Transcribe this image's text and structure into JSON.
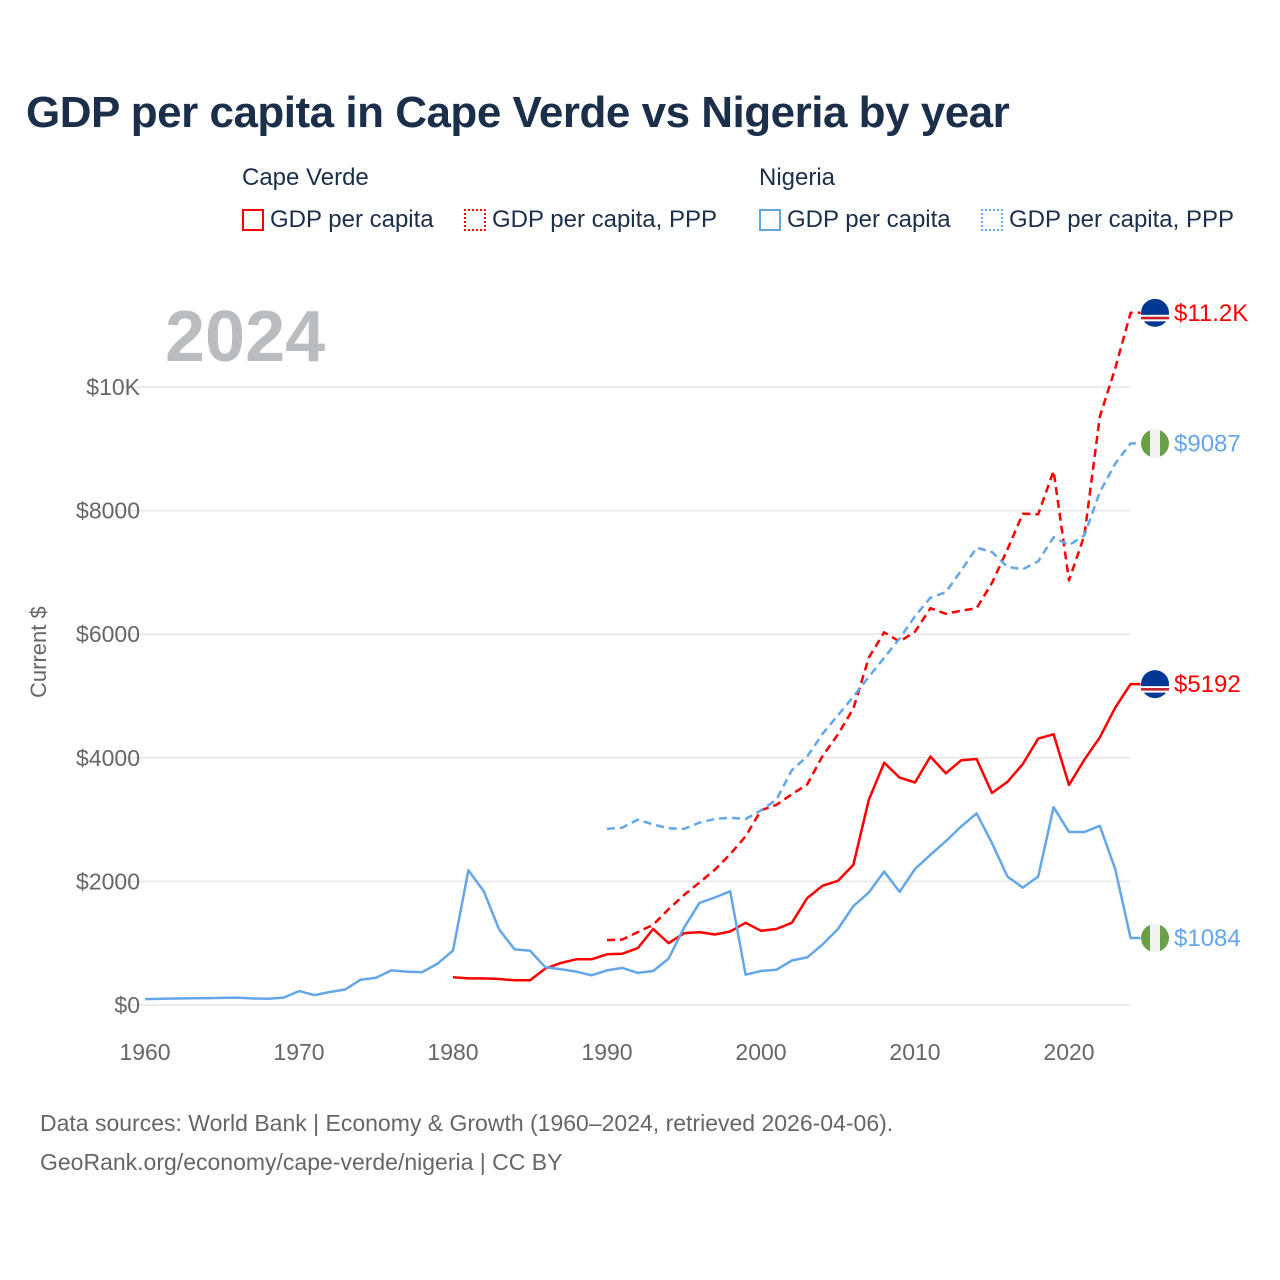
{
  "title": "GDP per capita in Cape Verde vs Nigeria by year",
  "legend": {
    "groups": [
      {
        "name": "Cape Verde",
        "color": "#ff0000",
        "items": [
          "GDP per capita",
          "GDP per capita, PPP"
        ]
      },
      {
        "name": "Nigeria",
        "color": "#63a7e8",
        "items": [
          "GDP per capita",
          "GDP per capita, PPP"
        ]
      }
    ]
  },
  "current_year": "2024",
  "footer": {
    "line1": "Data sources: World Bank | Economy & Growth (1960–2024, retrieved 2026-04-06).",
    "line2": "GeoRank.org/economy/cape-verde/nigeria | CC BY"
  },
  "chart_data": {
    "type": "line",
    "title": "GDP per capita in Cape Verde vs Nigeria by year",
    "xlabel": "",
    "ylabel": "Current $",
    "xlim": [
      1960,
      2024
    ],
    "ylim": [
      0,
      11200
    ],
    "grid": true,
    "legend_position": "top",
    "x_ticks": [
      1960,
      1970,
      1980,
      1990,
      2000,
      2010,
      2020
    ],
    "x_tick_labels": [
      "1960",
      "1970",
      "1980",
      "1990",
      "2000",
      "2010",
      "2020"
    ],
    "y_ticks": [
      0,
      2000,
      4000,
      6000,
      8000,
      10000
    ],
    "y_tick_labels": [
      "$0",
      "$2000",
      "$4000",
      "$6000",
      "$8000",
      "$10K"
    ],
    "series": [
      {
        "name": "Cape Verde GDP per capita",
        "country": "Cape Verde",
        "color": "#ff0000",
        "dashed": false,
        "start": 1980,
        "end_label": "$5192",
        "values": [
          450,
          430,
          430,
          420,
          400,
          400,
          590,
          680,
          740,
          740,
          820,
          830,
          920,
          1230,
          1000,
          1160,
          1180,
          1140,
          1190,
          1330,
          1200,
          1230,
          1330,
          1730,
          1930,
          2010,
          2270,
          3320,
          3920,
          3680,
          3600,
          4020,
          3750,
          3960,
          3980,
          3430,
          3610,
          3900,
          4310,
          4380,
          3560,
          3970,
          4330,
          4810,
          5192
        ]
      },
      {
        "name": "Cape Verde GDP per capita, PPP",
        "country": "Cape Verde",
        "color": "#ff0000",
        "dashed": true,
        "start": 1990,
        "end_label": "$11.2K",
        "values": [
          1050,
          1060,
          1180,
          1300,
          1550,
          1780,
          1980,
          2190,
          2440,
          2730,
          3150,
          3240,
          3410,
          3570,
          4030,
          4380,
          4800,
          5620,
          6030,
          5880,
          6040,
          6420,
          6330,
          6380,
          6420,
          6830,
          7370,
          7950,
          7940,
          8640,
          6870,
          7600,
          9520,
          10300,
          11200
        ]
      },
      {
        "name": "Nigeria GDP per capita",
        "country": "Nigeria",
        "color": "#63a7e8",
        "dashed": false,
        "start": 1960,
        "end_label": "$1084",
        "values": [
          95,
          100,
          105,
          108,
          112,
          115,
          120,
          105,
          100,
          120,
          225,
          160,
          210,
          250,
          410,
          440,
          560,
          540,
          530,
          670,
          880,
          2180,
          1840,
          1220,
          900,
          880,
          610,
          580,
          540,
          480,
          560,
          600,
          520,
          550,
          750,
          1250,
          1650,
          1740,
          1840,
          490,
          550,
          570,
          720,
          770,
          980,
          1230,
          1600,
          1820,
          2160,
          1830,
          2200,
          2430,
          2650,
          2890,
          3100,
          2620,
          2080,
          1900,
          2080,
          3200,
          2800,
          2800,
          2900,
          2200,
          1084
        ]
      },
      {
        "name": "Nigeria GDP per capita, PPP",
        "country": "Nigeria",
        "color": "#63a7e8",
        "dashed": true,
        "start": 1990,
        "end_label": "$9087",
        "values": [
          2850,
          2870,
          3000,
          2920,
          2860,
          2850,
          2950,
          3010,
          3030,
          3010,
          3150,
          3320,
          3800,
          4020,
          4390,
          4690,
          4990,
          5310,
          5620,
          5930,
          6290,
          6590,
          6680,
          7030,
          7400,
          7330,
          7090,
          7050,
          7180,
          7570,
          7440,
          7600,
          8300,
          8760,
          9087
        ]
      }
    ]
  }
}
